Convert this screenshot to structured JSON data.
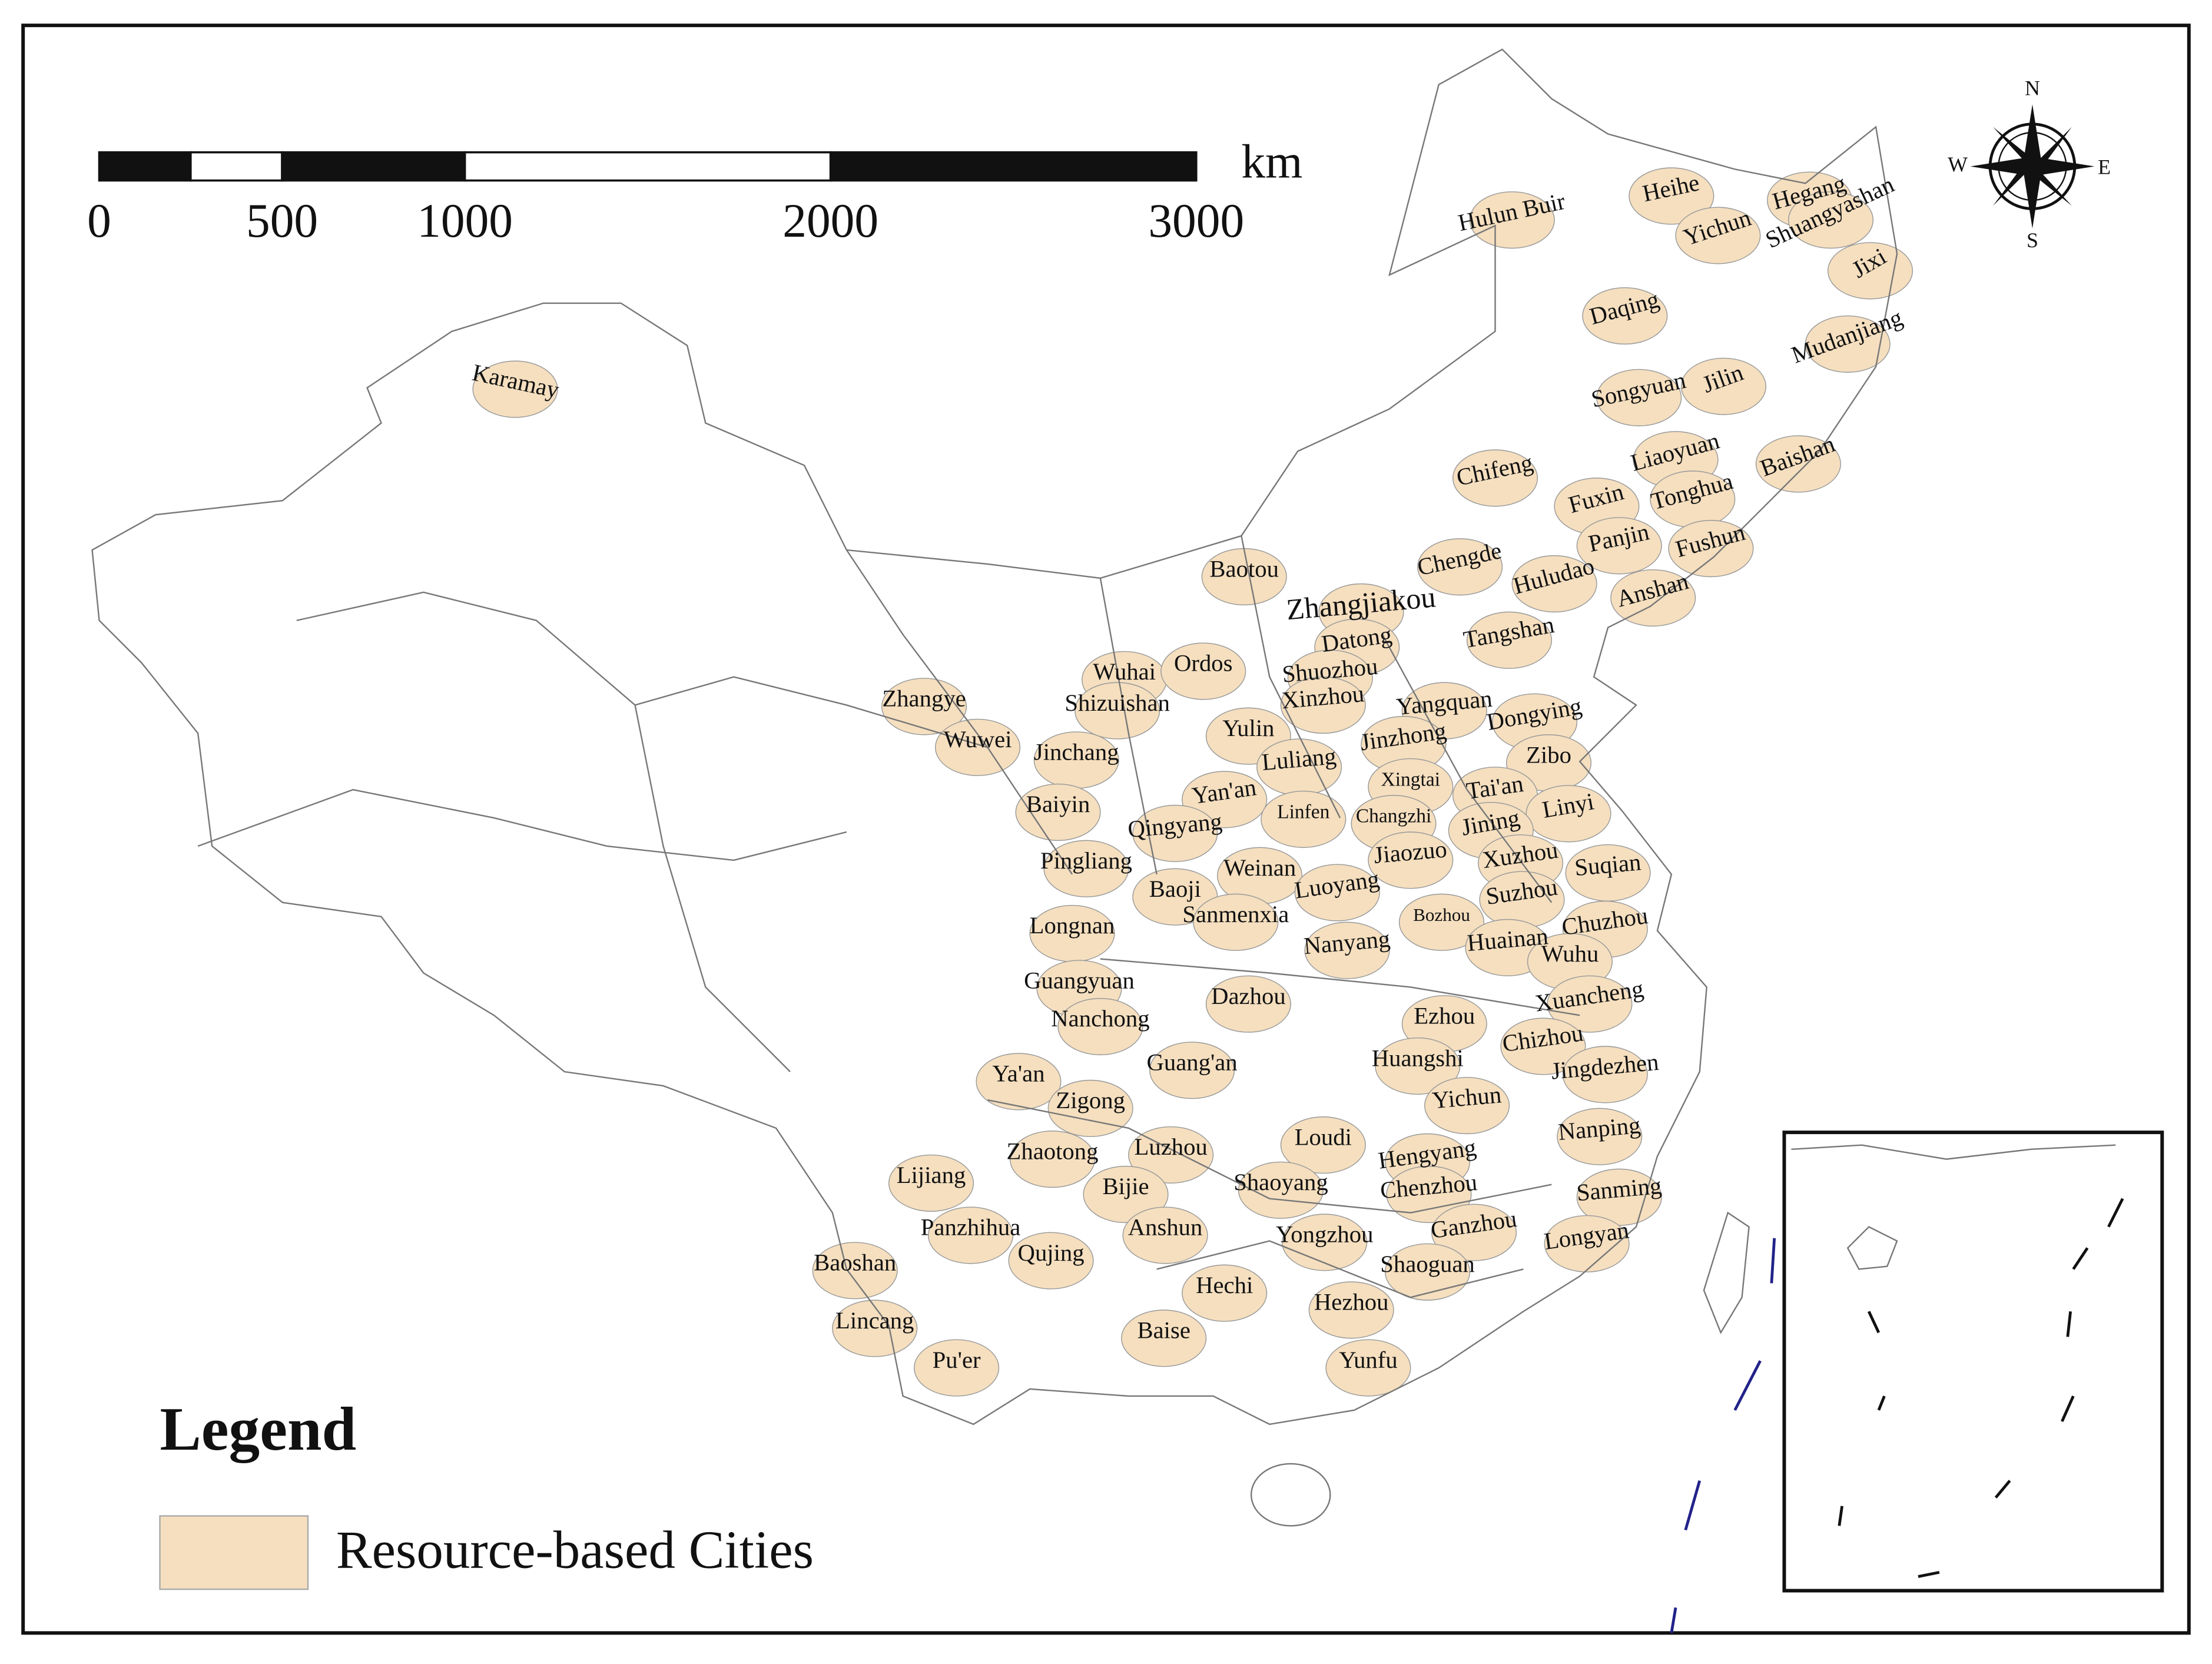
{
  "scale_bar": {
    "unit": "km",
    "ticks": [
      0,
      500,
      1000,
      2000,
      3000
    ]
  },
  "compass": {
    "north": "N",
    "east": "E",
    "south": "S",
    "west": "W"
  },
  "legend": {
    "title": "Legend",
    "items": [
      "Resource-based Cities"
    ]
  },
  "cities": [
    "Hulun Buir",
    "Heihe",
    "Yichun",
    "Hegang",
    "Shuangyashan",
    "Jixi",
    "Daqing",
    "Mudanjiang",
    "Songyuan",
    "Jilin",
    "Karamay",
    "Chifeng",
    "Liaoyuan",
    "Baishan",
    "Fuxin",
    "Tonghua",
    "Panjin",
    "Fushun",
    "Chengde",
    "Huludao",
    "Anshan",
    "Baotou",
    "Zhangjiakou",
    "Tangshan",
    "Datong",
    "Wuhai",
    "Ordos",
    "Shuozhou",
    "Zhangye",
    "Shizuishan",
    "Xinzhou",
    "Yangquan",
    "Dongying",
    "Yulin",
    "Wuwei",
    "Jinzhong",
    "Jinchang",
    "Luliang",
    "Zibo",
    "Xingtai",
    "Tai'an",
    "Yan'an",
    "Baiyin",
    "Linfen",
    "Changzhi",
    "Linyi",
    "Jining",
    "Qingyang",
    "Jiaozuo",
    "Xuzhou",
    "Pingliang",
    "Weinan",
    "Suqian",
    "Luoyang",
    "Baoji",
    "Suzhou",
    "Sanmenxia",
    "Bozhou",
    "Chuzhou",
    "Longnan",
    "Nanyang",
    "Huainan",
    "Wuhu",
    "Guangyuan",
    "Dazhou",
    "Xuancheng",
    "Nanchong",
    "Ezhou",
    "Chizhou",
    "Huangshi",
    "Guang'an",
    "Jingdezhen",
    "Ya'an",
    "Zigong",
    "Yichun",
    "Nanping",
    "Loudi",
    "Zhaotong",
    "Luzhou",
    "Hengyang",
    "Lijiang",
    "Shaoyang",
    "Chenzhou",
    "Sanming",
    "Bijie",
    "Panzhihua",
    "Anshun",
    "Yongzhou",
    "Ganzhou",
    "Longyan",
    "Qujing",
    "Baoshan",
    "Shaoguan",
    "Hechi",
    "Hezhou",
    "Lincang",
    "Baise",
    "Pu'er",
    "Yunfu"
  ]
}
